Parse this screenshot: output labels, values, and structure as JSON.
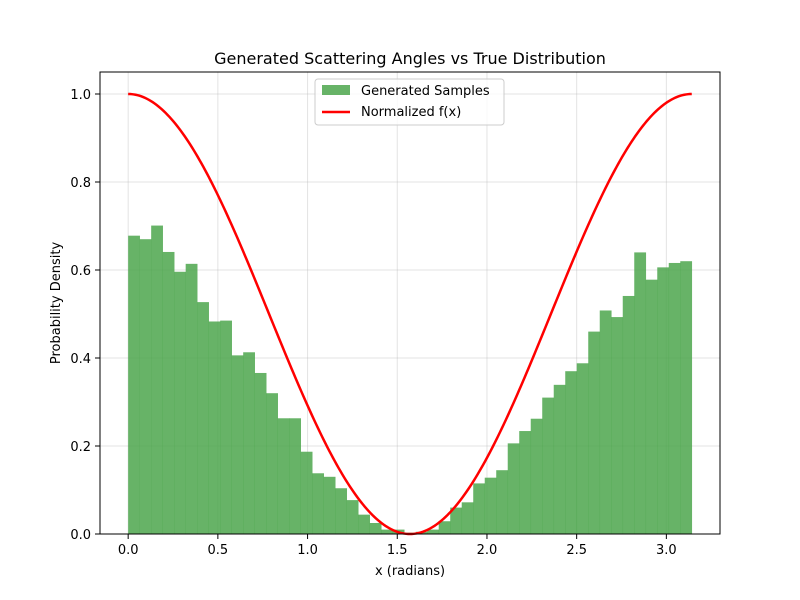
{
  "chart_data": {
    "type": "bar",
    "title": "Generated Scattering Angles vs True Distribution",
    "xlabel": "x (radians)",
    "ylabel": "Probability Density",
    "xlim": [
      -0.157,
      3.299
    ],
    "ylim": [
      0,
      1.05
    ],
    "xticks": [
      0.0,
      0.5,
      1.0,
      1.5,
      2.0,
      2.5,
      3.0
    ],
    "xtick_labels": [
      "0.0",
      "0.5",
      "1.0",
      "1.5",
      "2.0",
      "2.5",
      "3.0"
    ],
    "yticks": [
      0.0,
      0.2,
      0.4,
      0.6,
      0.8,
      1.0
    ],
    "ytick_labels": [
      "0.0",
      "0.2",
      "0.4",
      "0.6",
      "0.8",
      "1.0"
    ],
    "grid": true,
    "legend_position": "upper-center",
    "colors": {
      "histogram": "#4ca64c",
      "curve": "#ff0000"
    },
    "series": [
      {
        "name": "Generated Samples",
        "kind": "histogram",
        "bin_start": 0.0,
        "bin_end": 3.1416,
        "values": [
          0.678,
          0.67,
          0.701,
          0.641,
          0.596,
          0.614,
          0.527,
          0.483,
          0.485,
          0.406,
          0.413,
          0.366,
          0.32,
          0.263,
          0.263,
          0.187,
          0.138,
          0.13,
          0.104,
          0.077,
          0.044,
          0.025,
          0.01,
          0.01,
          0.003,
          0.005,
          0.01,
          0.029,
          0.06,
          0.072,
          0.115,
          0.128,
          0.145,
          0.206,
          0.234,
          0.262,
          0.31,
          0.339,
          0.37,
          0.388,
          0.46,
          0.508,
          0.493,
          0.541,
          0.64,
          0.578,
          0.606,
          0.616,
          0.62
        ]
      },
      {
        "name": "Normalized f(x)",
        "kind": "line",
        "function": "cos^2(x)",
        "x_range": [
          0.0,
          3.1416
        ]
      }
    ]
  }
}
